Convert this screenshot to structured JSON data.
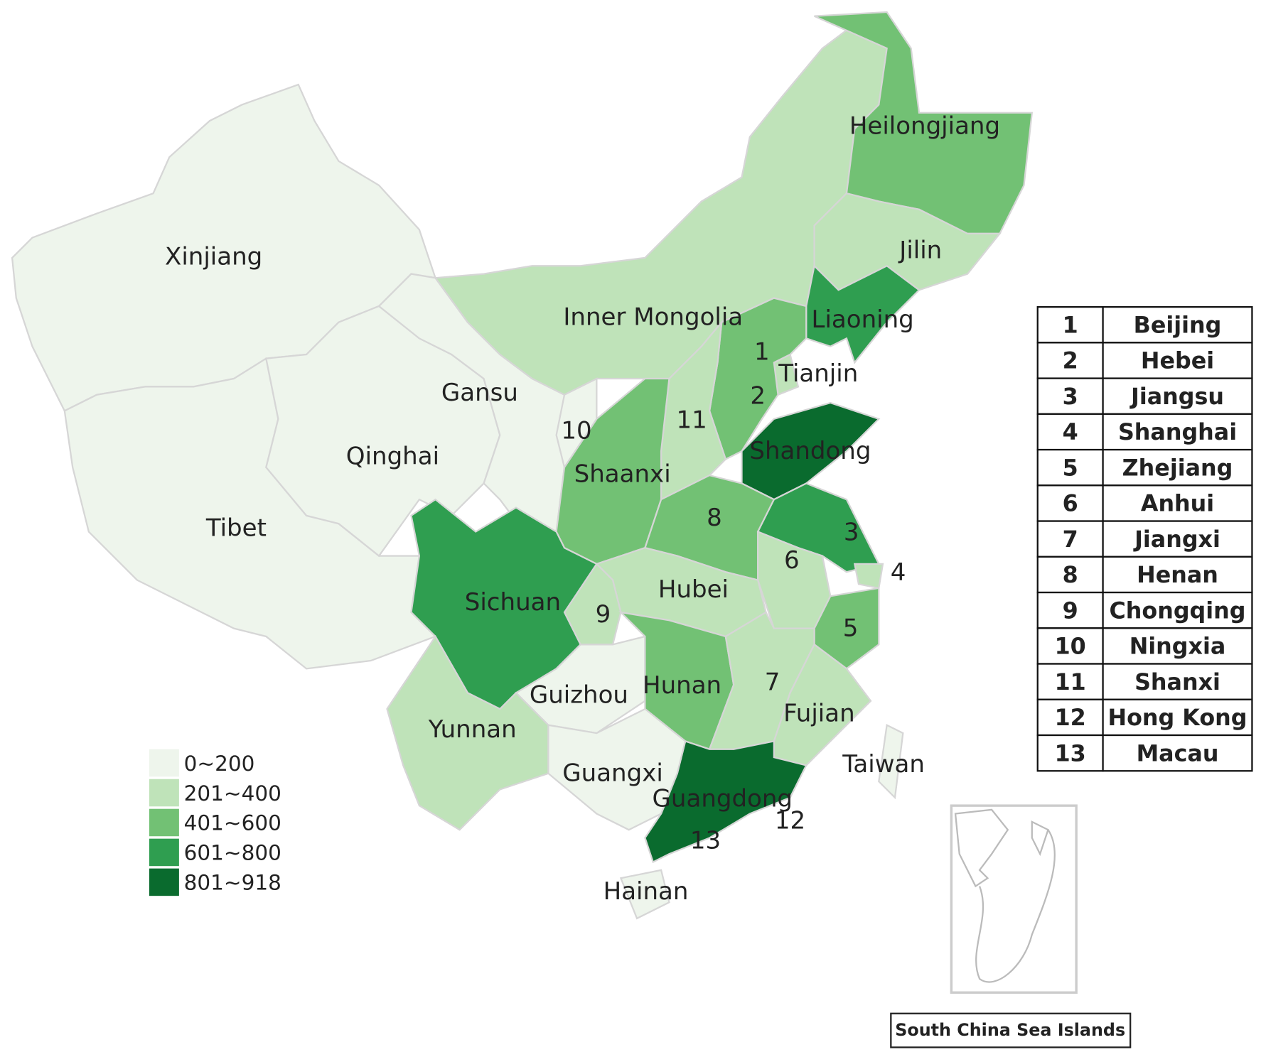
{
  "regions": [
    {
      "label": "Xinjiang",
      "color": "#eef5ec"
    },
    {
      "label": "Tibet",
      "color": "#eef5ec"
    },
    {
      "label": "Qinghai",
      "color": "#eef5ec"
    },
    {
      "label": "Gansu",
      "color": "#eef5ec"
    },
    {
      "label": "Inner Mongolia",
      "color": "#bfe3b9"
    },
    {
      "label": "Heilongjiang",
      "color": "#72c174"
    },
    {
      "label": "Jilin",
      "color": "#bfe3b9"
    },
    {
      "label": "Liaoning",
      "color": "#2f9e50"
    },
    {
      "label": "1",
      "color": "#bfe3b9"
    },
    {
      "label": "Tianjin",
      "color": "#bfe3b9"
    },
    {
      "label": "2",
      "color": "#72c174"
    },
    {
      "label": "11",
      "color": "#bfe3b9"
    },
    {
      "label": "Shaanxi",
      "color": "#72c174"
    },
    {
      "label": "10",
      "color": "#eef5ec"
    },
    {
      "label": "Shandong",
      "color": "#0a6b2e"
    },
    {
      "label": "8",
      "color": "#72c174"
    },
    {
      "label": "3",
      "color": "#2f9e50"
    },
    {
      "label": "4",
      "color": "#bfe3b9"
    },
    {
      "label": "6",
      "color": "#bfe3b9"
    },
    {
      "label": "5",
      "color": "#72c174"
    },
    {
      "label": "Hubei",
      "color": "#bfe3b9"
    },
    {
      "label": "9",
      "color": "#bfe3b9"
    },
    {
      "label": "Sichuan",
      "color": "#2f9e50"
    },
    {
      "label": "Guizhou",
      "color": "#eef5ec"
    },
    {
      "label": "Hunan",
      "color": "#72c174"
    },
    {
      "label": "7",
      "color": "#bfe3b9"
    },
    {
      "label": "Fujian",
      "color": "#bfe3b9"
    },
    {
      "label": "Guangdong",
      "color": "#0a6b2e"
    },
    {
      "label": "Guangxi",
      "color": "#eef5ec"
    },
    {
      "label": "Yunnan",
      "color": "#bfe3b9"
    },
    {
      "label": "Hainan",
      "color": "#eef5ec"
    },
    {
      "label": "Taiwan",
      "color": "#eef5ec"
    }
  ],
  "points": [
    {
      "label": "12"
    },
    {
      "label": "13"
    }
  ],
  "legend": [
    {
      "label": "0~200",
      "color": "#eef5ec"
    },
    {
      "label": "201~400",
      "color": "#bfe3b9"
    },
    {
      "label": "401~600",
      "color": "#72c174"
    },
    {
      "label": "601~800",
      "color": "#2f9e50"
    },
    {
      "label": "801~918",
      "color": "#0a6b2e"
    }
  ],
  "key_table": {
    "rows": [
      [
        "1",
        "Beijing"
      ],
      [
        "2",
        "Hebei"
      ],
      [
        "3",
        "Jiangsu"
      ],
      [
        "4",
        "Shanghai"
      ],
      [
        "5",
        "Zhejiang"
      ],
      [
        "6",
        "Anhui"
      ],
      [
        "7",
        "Jiangxi"
      ],
      [
        "8",
        "Henan"
      ],
      [
        "9",
        "Chongqing"
      ],
      [
        "10",
        "Ningxia"
      ],
      [
        "11",
        "Shanxi"
      ],
      [
        "12",
        "Hong Kong"
      ],
      [
        "13",
        "Macau"
      ]
    ]
  },
  "inset": {
    "caption": "South China Sea Islands"
  }
}
